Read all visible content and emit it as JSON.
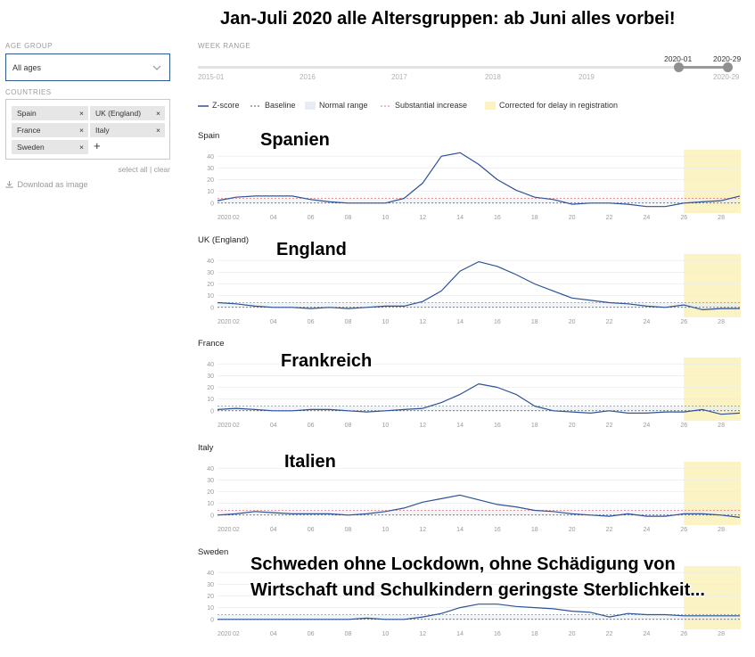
{
  "header": {
    "annotation_title": "Jan-Juli 2020 alle Altersgruppen: ab Juni alles vorbei!"
  },
  "sidebar": {
    "age_group_label": "AGE GROUP",
    "age_group_value": "All ages",
    "countries_label": "COUNTRIES",
    "countries": [
      "Spain",
      "UK (England)",
      "France",
      "Italy",
      "Sweden"
    ],
    "chip_remove": "×",
    "add_country": "+",
    "select_all": "select all",
    "separator": "|",
    "clear": "clear",
    "download": "Download as image"
  },
  "week_range": {
    "label": "WEEK RANGE",
    "start_label": "2015-01",
    "end_label": "2020-29",
    "year_ticks": [
      "2016",
      "2017",
      "2018",
      "2019"
    ],
    "selected_start": "2020-01",
    "selected_end": "2020-29"
  },
  "legend": {
    "zscore": "Z-score",
    "baseline": "Baseline",
    "normal": "Normal range",
    "substantial": "Substantial increase",
    "corrected": "Corrected for delay in registration"
  },
  "colors": {
    "zscore": "#2b5396",
    "baseline": "#555555",
    "normal_range": "#e8ecf3",
    "substantial": "#e07070",
    "corrected": "#fbf3c4",
    "axis_text": "#9a9a9a"
  },
  "chart_data": [
    {
      "type": "line",
      "title": "Spain",
      "annotation": "Spanien",
      "x": [
        1,
        2,
        3,
        4,
        5,
        6,
        7,
        8,
        9,
        10,
        11,
        12,
        13,
        14,
        15,
        16,
        17,
        18,
        19,
        20,
        21,
        22,
        23,
        24,
        25,
        26,
        27,
        28,
        29
      ],
      "series": [
        {
          "name": "Z-score",
          "values": [
            2,
            5,
            6,
            6,
            6,
            3,
            1,
            0,
            0,
            0,
            4,
            17,
            40,
            43,
            33,
            20,
            11,
            5,
            3,
            -1,
            0,
            0,
            -1,
            -3,
            -3,
            0,
            1,
            2,
            6
          ]
        }
      ],
      "x_ticks": [
        "2020",
        "02",
        "04",
        "06",
        "08",
        "10",
        "12",
        "14",
        "16",
        "18",
        "20",
        "22",
        "24",
        "26",
        "28"
      ],
      "y_ticks": [
        0,
        10,
        20,
        30,
        40
      ],
      "ylim": [
        -4,
        44
      ],
      "baseline": 0,
      "substantial_increase": 4,
      "corrected_weeks": [
        26,
        29
      ]
    },
    {
      "type": "line",
      "title": "UK (England)",
      "annotation": "England",
      "x": [
        1,
        2,
        3,
        4,
        5,
        6,
        7,
        8,
        9,
        10,
        11,
        12,
        13,
        14,
        15,
        16,
        17,
        18,
        19,
        20,
        21,
        22,
        23,
        24,
        25,
        26,
        27,
        28,
        29
      ],
      "series": [
        {
          "name": "Z-score",
          "values": [
            4,
            3,
            1,
            0,
            0,
            -1,
            0,
            -1,
            0,
            1,
            1,
            5,
            14,
            31,
            39,
            35,
            28,
            20,
            14,
            8,
            6,
            4,
            3,
            1,
            0,
            2,
            -2,
            -1,
            -1
          ]
        }
      ],
      "x_ticks": [
        "2020",
        "02",
        "04",
        "06",
        "08",
        "10",
        "12",
        "14",
        "16",
        "18",
        "20",
        "22",
        "24",
        "26",
        "28"
      ],
      "y_ticks": [
        0,
        10,
        20,
        30,
        40
      ],
      "ylim": [
        -4,
        44
      ],
      "baseline": 0,
      "substantial_increase": 4,
      "corrected_weeks": [
        26,
        29
      ]
    },
    {
      "type": "line",
      "title": "France",
      "annotation": "Frankreich",
      "x": [
        1,
        2,
        3,
        4,
        5,
        6,
        7,
        8,
        9,
        10,
        11,
        12,
        13,
        14,
        15,
        16,
        17,
        18,
        19,
        20,
        21,
        22,
        23,
        24,
        25,
        26,
        27,
        28,
        29
      ],
      "series": [
        {
          "name": "Z-score",
          "values": [
            1,
            2,
            1,
            0,
            0,
            1,
            1,
            0,
            -1,
            0,
            1,
            2,
            7,
            14,
            23,
            20,
            14,
            4,
            0,
            -1,
            -2,
            0,
            -2,
            -2,
            -1,
            -1,
            1,
            -3,
            -2
          ]
        }
      ],
      "x_ticks": [
        "2020",
        "02",
        "04",
        "06",
        "08",
        "10",
        "12",
        "14",
        "16",
        "18",
        "20",
        "22",
        "24",
        "26",
        "28"
      ],
      "y_ticks": [
        0,
        10,
        20,
        30,
        40
      ],
      "ylim": [
        -4,
        44
      ],
      "baseline": 0,
      "substantial_increase": 4,
      "corrected_weeks": [
        26,
        29
      ]
    },
    {
      "type": "line",
      "title": "Italy",
      "annotation": "Italien",
      "x": [
        1,
        2,
        3,
        4,
        5,
        6,
        7,
        8,
        9,
        10,
        11,
        12,
        13,
        14,
        15,
        16,
        17,
        18,
        19,
        20,
        21,
        22,
        23,
        24,
        25,
        26,
        27,
        28,
        29
      ],
      "series": [
        {
          "name": "Z-score",
          "values": [
            0,
            1,
            3,
            2,
            1,
            1,
            1,
            0,
            1,
            3,
            6,
            11,
            14,
            17,
            13,
            9,
            7,
            4,
            3,
            1,
            0,
            -1,
            1,
            -1,
            -1,
            1,
            1,
            0,
            -2
          ]
        }
      ],
      "x_ticks": [
        "2020",
        "02",
        "04",
        "06",
        "08",
        "10",
        "12",
        "14",
        "16",
        "18",
        "20",
        "22",
        "24",
        "26",
        "28"
      ],
      "y_ticks": [
        0,
        10,
        20,
        30,
        40
      ],
      "ylim": [
        -4,
        44
      ],
      "baseline": 0,
      "substantial_increase": 4,
      "corrected_weeks": [
        26,
        29
      ]
    },
    {
      "type": "line",
      "title": "Sweden",
      "annotation": "Schweden ohne Lockdown, ohne Schädigung von Wirtschaft und Schulkindern geringste Sterblichkeit...",
      "annotation_lines": [
        "Schweden ohne Lockdown, ohne Schädigung von",
        "Wirtschaft und Schulkindern geringste Sterblichkeit..."
      ],
      "x": [
        1,
        2,
        3,
        4,
        5,
        6,
        7,
        8,
        9,
        10,
        11,
        12,
        13,
        14,
        15,
        16,
        17,
        18,
        19,
        20,
        21,
        22,
        23,
        24,
        25,
        26,
        27,
        28,
        29
      ],
      "series": [
        {
          "name": "Z-score",
          "values": [
            0,
            0,
            0,
            0,
            0,
            0,
            0,
            0,
            1,
            0,
            0,
            2,
            5,
            10,
            13,
            13,
            11,
            10,
            9,
            7,
            6,
            2,
            5,
            4,
            4,
            3,
            3,
            3,
            3
          ]
        }
      ],
      "x_ticks": [
        "2020",
        "02",
        "04",
        "06",
        "08",
        "10",
        "12",
        "14",
        "16",
        "18",
        "20",
        "22",
        "24",
        "26",
        "28"
      ],
      "y_ticks": [
        0,
        10,
        20,
        30,
        40
      ],
      "ylim": [
        -4,
        44
      ],
      "baseline": 0,
      "substantial_increase": 4,
      "corrected_weeks": [
        26,
        29
      ]
    }
  ]
}
